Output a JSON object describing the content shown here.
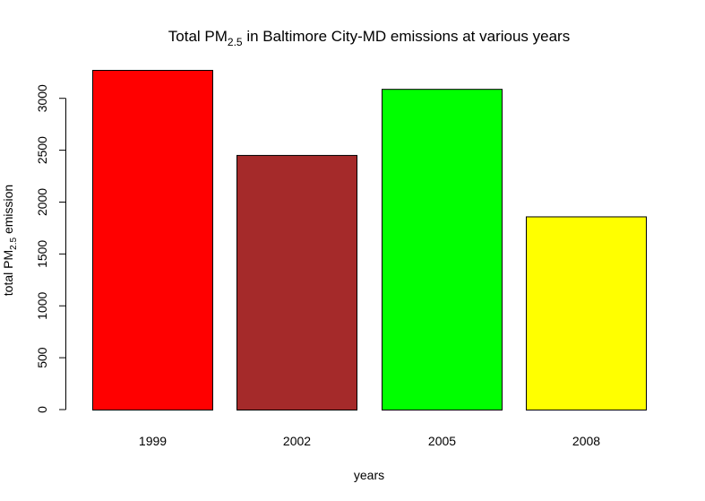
{
  "chart_data": {
    "type": "bar",
    "title": {
      "prefix": "Total PM",
      "subscript": "2.5",
      "suffix": " in Baltimore City-MD emissions at various years"
    },
    "xlabel": "years",
    "ylabel": {
      "prefix": "total PM",
      "subscript": "2.5",
      "suffix": " emission"
    },
    "categories": [
      "1999",
      "2002",
      "2005",
      "2008"
    ],
    "values": [
      3274,
      2454,
      3091,
      1862
    ],
    "colors": [
      "#ff0000",
      "#a52a2a",
      "#00ff00",
      "#ffff00"
    ],
    "yticks": [
      0,
      500,
      1000,
      1500,
      2000,
      2500,
      3000
    ],
    "ylim": [
      0,
      3274
    ],
    "grid": false,
    "legend": "none"
  }
}
